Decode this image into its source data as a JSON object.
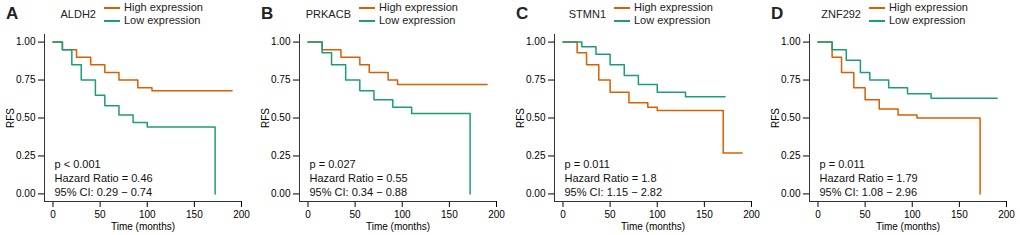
{
  "chart_data": [
    {
      "type": "line",
      "panel_label": "A",
      "title": "ALDH2",
      "x_label": "Time (months)",
      "y_label": "RFS",
      "annotations": [
        "p < 0.001",
        "Hazard Ratio = 0.46",
        "95% CI: 0.29 − 0.74"
      ],
      "xlim": [
        -9,
        200
      ],
      "xticks": [
        0,
        50,
        100,
        150,
        200
      ],
      "ylim": [
        -0.05,
        1.05
      ],
      "yticks": [
        {
          "value": 0,
          "label": "0.00"
        },
        {
          "value": 0.25,
          "label": "0.25"
        },
        {
          "value": 0.5,
          "label": "0.50"
        },
        {
          "value": 0.75,
          "label": "0.75"
        },
        {
          "value": 1,
          "label": "1.00"
        }
      ],
      "line_style": "step",
      "series": [
        {
          "name": "High expression",
          "color": "#d95f02",
          "x": [
            0,
            10,
            25,
            40,
            55,
            70,
            90,
            105,
            190
          ],
          "values": [
            1,
            0.95,
            0.9,
            0.85,
            0.8,
            0.75,
            0.7,
            0.68,
            0.68
          ]
        },
        {
          "name": "Low expression",
          "color": "#1b9e77",
          "x": [
            0,
            10,
            20,
            30,
            45,
            55,
            70,
            85,
            100,
            172
          ],
          "values": [
            1,
            0.95,
            0.85,
            0.75,
            0.65,
            0.58,
            0.52,
            0.47,
            0.44,
            0
          ]
        }
      ]
    },
    {
      "type": "line",
      "panel_label": "B",
      "title": "PRKACB",
      "x_label": "Time (months)",
      "y_label": "RFS",
      "annotations": [
        "p = 0.027",
        "Hazard Ratio = 0.55",
        "95% CI: 0.34 − 0.88"
      ],
      "xlim": [
        -9,
        200
      ],
      "xticks": [
        0,
        50,
        100,
        150,
        200
      ],
      "ylim": [
        -0.05,
        1.05
      ],
      "yticks": [
        {
          "value": 0,
          "label": "0.00"
        },
        {
          "value": 0.25,
          "label": "0.25"
        },
        {
          "value": 0.5,
          "label": "0.50"
        },
        {
          "value": 0.75,
          "label": "0.75"
        },
        {
          "value": 1,
          "label": "1.00"
        }
      ],
      "line_style": "step",
      "series": [
        {
          "name": "High expression",
          "color": "#d95f02",
          "x": [
            0,
            15,
            35,
            55,
            65,
            85,
            95,
            190
          ],
          "values": [
            1,
            0.95,
            0.9,
            0.85,
            0.8,
            0.75,
            0.72,
            0.72
          ]
        },
        {
          "name": "Low expression",
          "color": "#1b9e77",
          "x": [
            0,
            15,
            25,
            40,
            55,
            70,
            90,
            110,
            172
          ],
          "values": [
            1,
            0.93,
            0.85,
            0.75,
            0.68,
            0.62,
            0.57,
            0.53,
            0
          ]
        }
      ]
    },
    {
      "type": "line",
      "panel_label": "C",
      "title": "STMN1",
      "x_label": "Time (months)",
      "y_label": "RFS",
      "annotations": [
        "p = 0.011",
        "Hazard Ratio = 1.8",
        "95% CI: 1.15 − 2.82"
      ],
      "xlim": [
        -9,
        200
      ],
      "xticks": [
        0,
        50,
        100,
        150,
        200
      ],
      "ylim": [
        -0.05,
        1.05
      ],
      "yticks": [
        {
          "value": 0,
          "label": "0.00"
        },
        {
          "value": 0.25,
          "label": "0.25"
        },
        {
          "value": 0.5,
          "label": "0.50"
        },
        {
          "value": 0.75,
          "label": "0.75"
        },
        {
          "value": 1,
          "label": "1.00"
        }
      ],
      "line_style": "step",
      "series": [
        {
          "name": "High expression",
          "color": "#d95f02",
          "x": [
            0,
            15,
            25,
            38,
            50,
            70,
            90,
            100,
            170,
            190
          ],
          "values": [
            1,
            0.93,
            0.85,
            0.75,
            0.67,
            0.6,
            0.57,
            0.55,
            0.27,
            0.27
          ]
        },
        {
          "name": "Low expression",
          "color": "#1b9e77",
          "x": [
            0,
            20,
            35,
            50,
            65,
            80,
            100,
            130,
            172
          ],
          "values": [
            1,
            0.97,
            0.92,
            0.85,
            0.78,
            0.72,
            0.67,
            0.64,
            0.64
          ]
        }
      ]
    },
    {
      "type": "line",
      "panel_label": "D",
      "title": "ZNF292",
      "x_label": "Time (months)",
      "y_label": "RFS",
      "annotations": [
        "p = 0.011",
        "Hazard Ratio = 1.79",
        "95% CI: 1.08 − 2.96"
      ],
      "xlim": [
        -9,
        200
      ],
      "xticks": [
        0,
        50,
        100,
        150,
        200
      ],
      "ylim": [
        -0.05,
        1.05
      ],
      "yticks": [
        {
          "value": 0,
          "label": "0.00"
        },
        {
          "value": 0.25,
          "label": "0.25"
        },
        {
          "value": 0.5,
          "label": "0.50"
        },
        {
          "value": 0.75,
          "label": "0.75"
        },
        {
          "value": 1,
          "label": "1.00"
        }
      ],
      "line_style": "step",
      "series": [
        {
          "name": "High expression",
          "color": "#d95f02",
          "x": [
            0,
            15,
            25,
            38,
            50,
            65,
            85,
            105,
            172
          ],
          "values": [
            1,
            0.9,
            0.8,
            0.7,
            0.62,
            0.56,
            0.52,
            0.5,
            0
          ]
        },
        {
          "name": "Low expression",
          "color": "#1b9e77",
          "x": [
            0,
            15,
            30,
            45,
            55,
            75,
            95,
            120,
            190
          ],
          "values": [
            1,
            0.95,
            0.88,
            0.8,
            0.75,
            0.7,
            0.66,
            0.63,
            0.63
          ]
        }
      ]
    }
  ]
}
